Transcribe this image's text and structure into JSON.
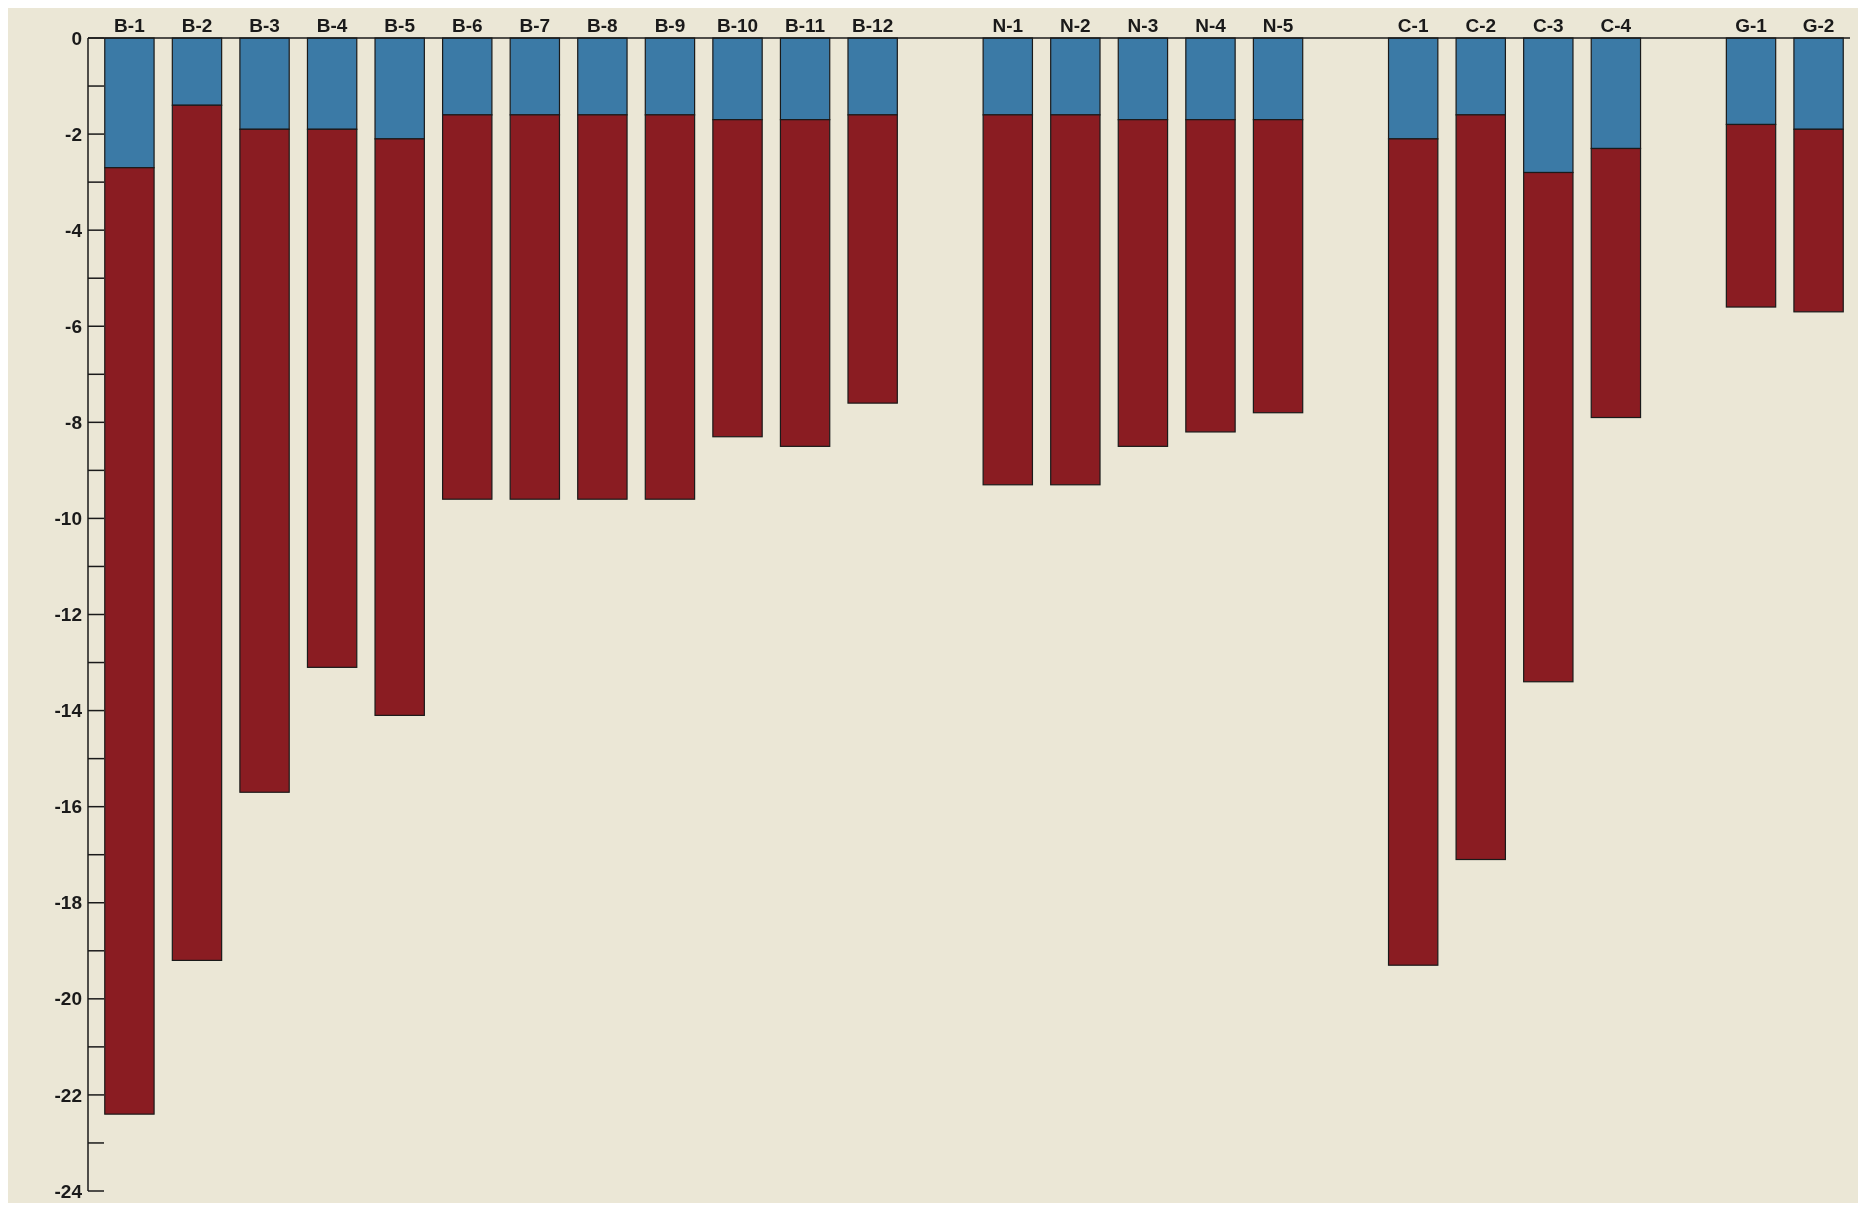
{
  "chart_data": {
    "type": "bar",
    "stacked": true,
    "categories": [
      "B-1",
      "B-2",
      "B-3",
      "B-4",
      "B-5",
      "B-6",
      "B-7",
      "B-8",
      "B-9",
      "B-10",
      "B-11",
      "B-12",
      null,
      "N-1",
      "N-2",
      "N-3",
      "N-4",
      "N-5",
      null,
      "C-1",
      "C-2",
      "C-3",
      "C-4",
      null,
      "G-1",
      "G-2"
    ],
    "series": [
      {
        "color": "#3b7aa6",
        "values": [
          -2.7,
          -1.4,
          -1.9,
          -1.9,
          -2.1,
          -1.6,
          -1.6,
          -1.6,
          -1.6,
          -1.7,
          -1.7,
          -1.6,
          null,
          -1.6,
          -1.6,
          -1.7,
          -1.7,
          -1.7,
          null,
          -2.1,
          -1.6,
          -2.8,
          -2.3,
          null,
          -1.8,
          -1.9
        ]
      },
      {
        "color": "#8a1c22",
        "values": [
          -19.7,
          -17.8,
          -13.8,
          -11.2,
          -12.0,
          -8.0,
          -8.0,
          -8.0,
          -8.0,
          -6.6,
          -6.8,
          -6.0,
          null,
          -7.7,
          -7.7,
          -6.8,
          -6.5,
          -6.1,
          null,
          -17.2,
          -15.5,
          -10.6,
          -5.6,
          null,
          -3.8,
          -3.8
        ]
      }
    ],
    "ylim": [
      -24,
      0
    ],
    "yticks": [
      0,
      {
        "value": -1,
        "label": null
      },
      -2,
      {
        "value": -3,
        "label": null
      },
      -4,
      {
        "value": -5,
        "label": null
      },
      -6,
      {
        "value": -7,
        "label": null
      },
      -8,
      {
        "value": -9,
        "label": null
      },
      -10,
      {
        "value": -11,
        "label": null
      },
      -12,
      {
        "value": -13,
        "label": null
      },
      -14,
      {
        "value": -15,
        "label": null
      },
      -16,
      {
        "value": -17,
        "label": null
      },
      -18,
      {
        "value": -19,
        "label": null
      },
      -20,
      {
        "value": -21,
        "label": null
      },
      -22,
      {
        "value": -23,
        "label": null
      },
      -24
    ],
    "grid": false
  }
}
